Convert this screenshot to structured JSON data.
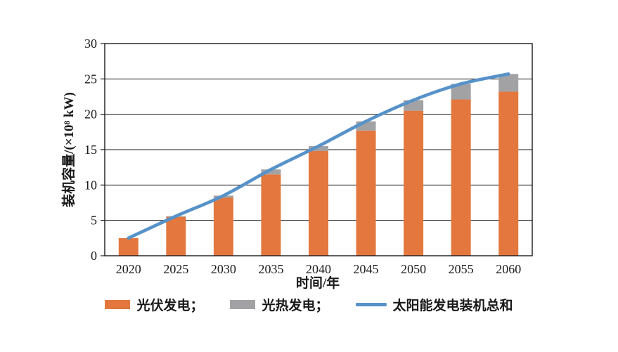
{
  "chart_data": {
    "type": "bar",
    "subtype": "stacked-bars-with-total-line",
    "title": "",
    "xlabel": "时间/年",
    "ylabel": "装机容量/(×10⁸ kW)",
    "categories": [
      "2020",
      "2025",
      "2030",
      "2035",
      "2040",
      "2045",
      "2050",
      "2055",
      "2060"
    ],
    "series": [
      {
        "name": "光伏发电",
        "type": "bar",
        "color": "#E3773E",
        "values": [
          2.5,
          5.5,
          8.2,
          11.5,
          14.8,
          17.7,
          20.5,
          22.1,
          23.2
        ]
      },
      {
        "name": "光热发电",
        "type": "bar",
        "color": "#A2A2A5",
        "values": [
          0.0,
          0.1,
          0.3,
          0.7,
          0.7,
          1.3,
          1.5,
          2.2,
          2.5
        ]
      },
      {
        "name": "太阳能发电装机总和",
        "type": "line",
        "color": "#5792C9",
        "values": [
          2.5,
          5.6,
          8.5,
          12.2,
          15.5,
          19.0,
          22.0,
          24.3,
          25.7
        ]
      }
    ],
    "ylim": [
      0,
      30
    ],
    "ytick_step": 5,
    "yticks": [
      "0",
      "5",
      "10",
      "15",
      "20",
      "25",
      "30"
    ],
    "grid": "horizontal",
    "plot_border": true,
    "legend_position": "bottom",
    "legend_labels": [
      "光伏发电；",
      "光热发电；",
      "太阳能发电装机总和"
    ]
  },
  "colors": {
    "pv_bar": "#E3773E",
    "csp_bar": "#A2A2A5",
    "total_line": "#5792C9",
    "axis": "#1b1b1b",
    "background": "#ffffff"
  }
}
